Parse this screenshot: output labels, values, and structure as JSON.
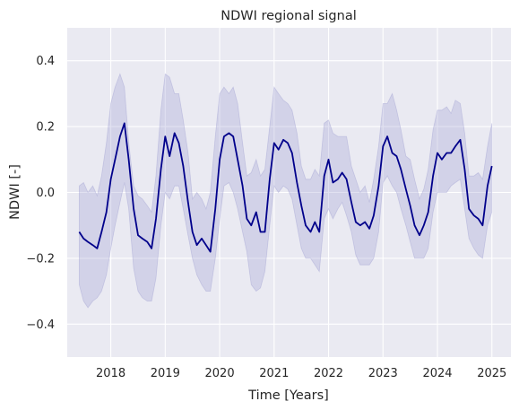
{
  "chart_data": {
    "type": "line",
    "title": "NDWI regional signal",
    "xlabel": "Time [Years]",
    "ylabel": "NDWI [-]",
    "xlim": [
      2017.2,
      2025.35
    ],
    "ylim": [
      -0.5,
      0.5
    ],
    "x_ticks": [
      2018,
      2019,
      2020,
      2021,
      2022,
      2023,
      2024,
      2025
    ],
    "y_ticks": [
      -0.4,
      -0.2,
      0.0,
      0.2,
      0.4
    ],
    "y_tick_labels": [
      "−0.4",
      "−0.2",
      "0.0",
      "0.2",
      "0.4"
    ],
    "grid": true,
    "background": "#eaeaf2",
    "series": [
      {
        "line_color": "#00008b",
        "band_color": "#9a9ad0",
        "x": [
          2017.42,
          2017.5,
          2017.58,
          2017.67,
          2017.75,
          2017.83,
          2017.92,
          2018.0,
          2018.08,
          2018.17,
          2018.25,
          2018.33,
          2018.42,
          2018.5,
          2018.58,
          2018.67,
          2018.75,
          2018.83,
          2018.92,
          2019.0,
          2019.08,
          2019.17,
          2019.25,
          2019.33,
          2019.42,
          2019.5,
          2019.58,
          2019.67,
          2019.75,
          2019.83,
          2019.92,
          2020.0,
          2020.08,
          2020.17,
          2020.25,
          2020.33,
          2020.42,
          2020.5,
          2020.58,
          2020.67,
          2020.75,
          2020.83,
          2020.92,
          2021.0,
          2021.08,
          2021.17,
          2021.25,
          2021.33,
          2021.42,
          2021.5,
          2021.58,
          2021.67,
          2021.75,
          2021.83,
          2021.92,
          2022.0,
          2022.08,
          2022.17,
          2022.25,
          2022.33,
          2022.42,
          2022.5,
          2022.58,
          2022.67,
          2022.75,
          2022.83,
          2022.92,
          2023.0,
          2023.08,
          2023.17,
          2023.25,
          2023.33,
          2023.42,
          2023.5,
          2023.58,
          2023.67,
          2023.75,
          2023.83,
          2023.92,
          2024.0,
          2024.08,
          2024.17,
          2024.25,
          2024.33,
          2024.42,
          2024.5,
          2024.58,
          2024.67,
          2024.75,
          2024.83,
          2024.92,
          2025.0
        ],
        "y": [
          -0.12,
          -0.14,
          -0.15,
          -0.16,
          -0.17,
          -0.12,
          -0.06,
          0.04,
          0.1,
          0.17,
          0.21,
          0.1,
          -0.05,
          -0.13,
          -0.14,
          -0.15,
          -0.17,
          -0.08,
          0.07,
          0.17,
          0.11,
          0.18,
          0.15,
          0.08,
          -0.03,
          -0.12,
          -0.16,
          -0.14,
          -0.16,
          -0.18,
          -0.05,
          0.1,
          0.17,
          0.18,
          0.17,
          0.1,
          0.02,
          -0.08,
          -0.1,
          -0.06,
          -0.12,
          -0.12,
          0.04,
          0.15,
          0.13,
          0.16,
          0.15,
          0.12,
          0.03,
          -0.04,
          -0.1,
          -0.12,
          -0.09,
          -0.12,
          0.05,
          0.1,
          0.03,
          0.04,
          0.06,
          0.04,
          -0.03,
          -0.09,
          -0.1,
          -0.09,
          -0.11,
          -0.07,
          0.02,
          0.14,
          0.17,
          0.12,
          0.11,
          0.07,
          0.01,
          -0.04,
          -0.1,
          -0.13,
          -0.1,
          -0.06,
          0.05,
          0.12,
          0.1,
          0.12,
          0.12,
          0.14,
          0.16,
          0.07,
          -0.05,
          -0.07,
          -0.08,
          -0.1,
          0.02,
          0.08
        ],
        "upper": [
          0.02,
          0.03,
          0.0,
          0.02,
          -0.01,
          0.05,
          0.15,
          0.27,
          0.32,
          0.36,
          0.32,
          0.15,
          0.02,
          -0.01,
          -0.02,
          -0.04,
          -0.06,
          0.05,
          0.25,
          0.36,
          0.35,
          0.3,
          0.3,
          0.22,
          0.12,
          -0.02,
          0.0,
          -0.02,
          -0.05,
          0.0,
          0.17,
          0.3,
          0.32,
          0.3,
          0.32,
          0.27,
          0.15,
          0.05,
          0.06,
          0.1,
          0.05,
          0.07,
          0.2,
          0.32,
          0.3,
          0.28,
          0.27,
          0.25,
          0.18,
          0.08,
          0.04,
          0.04,
          0.07,
          0.05,
          0.21,
          0.22,
          0.18,
          0.17,
          0.17,
          0.17,
          0.08,
          0.04,
          0.0,
          0.02,
          -0.03,
          0.04,
          0.14,
          0.27,
          0.27,
          0.3,
          0.25,
          0.19,
          0.11,
          0.1,
          0.04,
          -0.02,
          0.01,
          0.07,
          0.19,
          0.25,
          0.25,
          0.26,
          0.24,
          0.28,
          0.27,
          0.18,
          0.05,
          0.05,
          0.06,
          0.04,
          0.14,
          0.21
        ],
        "lower": [
          -0.28,
          -0.33,
          -0.35,
          -0.33,
          -0.32,
          -0.3,
          -0.25,
          -0.17,
          -0.1,
          -0.03,
          0.03,
          -0.05,
          -0.23,
          -0.3,
          -0.32,
          -0.33,
          -0.33,
          -0.26,
          -0.1,
          0.0,
          -0.02,
          0.02,
          0.02,
          -0.05,
          -0.13,
          -0.2,
          -0.25,
          -0.28,
          -0.3,
          -0.3,
          -0.2,
          -0.08,
          0.02,
          0.03,
          0.0,
          -0.05,
          -0.12,
          -0.18,
          -0.28,
          -0.3,
          -0.29,
          -0.24,
          -0.1,
          0.02,
          0.0,
          0.02,
          0.01,
          -0.02,
          -0.1,
          -0.17,
          -0.2,
          -0.2,
          -0.22,
          -0.24,
          -0.08,
          -0.05,
          -0.08,
          -0.05,
          -0.03,
          -0.07,
          -0.12,
          -0.19,
          -0.22,
          -0.22,
          -0.22,
          -0.2,
          -0.12,
          0.03,
          0.05,
          0.02,
          0.0,
          -0.05,
          -0.1,
          -0.15,
          -0.2,
          -0.2,
          -0.2,
          -0.17,
          -0.06,
          0.0,
          0.0,
          0.0,
          0.02,
          0.03,
          0.04,
          -0.05,
          -0.14,
          -0.17,
          -0.19,
          -0.2,
          -0.1,
          -0.06
        ]
      }
    ]
  }
}
